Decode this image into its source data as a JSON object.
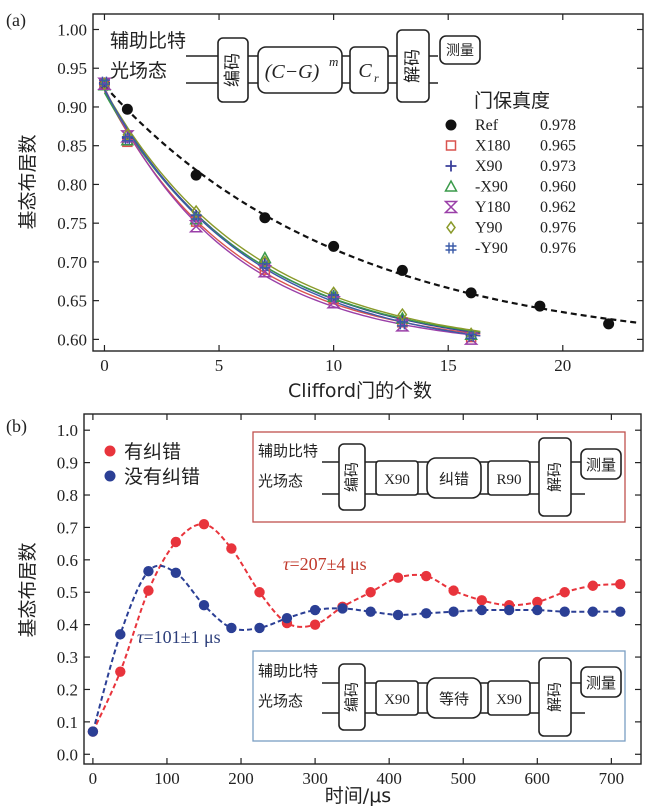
{
  "chart_data": [
    {
      "type": "line",
      "panel_label": "(a)",
      "xlabel": "Clifford门的个数",
      "ylabel": "基态布居数",
      "xlim": [
        -0.5,
        23.5
      ],
      "ylim": [
        0.585,
        1.02
      ],
      "xticks": [
        0,
        5,
        10,
        15,
        20
      ],
      "yticks": [
        0.6,
        0.65,
        0.7,
        0.75,
        0.8,
        0.85,
        0.9,
        0.95,
        1.0
      ],
      "ytick_labels": [
        "0.60",
        "0.65",
        "0.70",
        "0.75",
        "0.80",
        "0.85",
        "0.90",
        "0.95",
        "1.00"
      ],
      "legend_title": "门保真度",
      "circuit": {
        "input_top": "辅助比特",
        "input_bottom": "光场态",
        "encode": "编码",
        "gate_seq": "(C−G)",
        "gate_seq_sup": "m",
        "recovery": "C",
        "recovery_sub": "r",
        "decode": "解码",
        "measure": "测量"
      },
      "series": [
        {
          "name": "Ref",
          "fidelity": "0.978",
          "color": "#111111",
          "marker": "dot",
          "dashed": true,
          "x": [
            0,
            1,
            4,
            7,
            10,
            13,
            16,
            19,
            22
          ],
          "y": [
            0.93,
            0.897,
            0.812,
            0.757,
            0.72,
            0.689,
            0.66,
            0.643,
            0.62
          ]
        },
        {
          "name": "X180",
          "fidelity": "0.965",
          "color": "#d9534f",
          "marker": "square",
          "x": [
            0,
            1,
            4,
            7,
            10,
            13,
            16
          ],
          "y": [
            0.929,
            0.855,
            0.752,
            0.69,
            0.652,
            0.622,
            0.603
          ]
        },
        {
          "name": "X90",
          "fidelity": "0.973",
          "color": "#3a3f9a",
          "marker": "plus",
          "x": [
            0,
            1,
            4,
            7,
            10,
            13,
            16
          ],
          "y": [
            0.931,
            0.86,
            0.76,
            0.698,
            0.657,
            0.626,
            0.605
          ]
        },
        {
          "name": "-X90",
          "fidelity": "0.960",
          "color": "#3a9a4a",
          "marker": "triangle",
          "x": [
            0,
            1,
            4,
            7,
            10,
            13,
            16
          ],
          "y": [
            0.928,
            0.857,
            0.755,
            0.705,
            0.655,
            0.627,
            0.606
          ]
        },
        {
          "name": "Y180",
          "fidelity": "0.962",
          "color": "#9a3fa8",
          "marker": "bowtie",
          "x": [
            0,
            1,
            4,
            7,
            10,
            13,
            16
          ],
          "y": [
            0.93,
            0.862,
            0.746,
            0.688,
            0.648,
            0.618,
            0.601
          ]
        },
        {
          "name": "Y90",
          "fidelity": "0.976",
          "color": "#8a9a2a",
          "marker": "diamond",
          "x": [
            0,
            1,
            4,
            7,
            10,
            13,
            16
          ],
          "y": [
            0.93,
            0.864,
            0.765,
            0.7,
            0.66,
            0.632,
            0.607
          ]
        },
        {
          "name": "-Y90",
          "fidelity": "0.976",
          "color": "#3a5aa8",
          "marker": "hash",
          "x": [
            0,
            1,
            4,
            7,
            10,
            13,
            16
          ],
          "y": [
            0.932,
            0.859,
            0.758,
            0.695,
            0.655,
            0.62,
            0.604
          ]
        }
      ]
    },
    {
      "type": "line",
      "panel_label": "(b)",
      "xlabel": "时间/μs",
      "ylabel": "基态布居数",
      "xlim": [
        -12,
        740
      ],
      "ylim": [
        -0.03,
        1.05
      ],
      "xticks": [
        0,
        100,
        200,
        300,
        400,
        500,
        600,
        700
      ],
      "yticks": [
        0,
        0.1,
        0.2,
        0.3,
        0.4,
        0.5,
        0.6,
        0.7,
        0.8,
        0.9,
        1.0
      ],
      "ytick_labels": [
        "0.0",
        "0.1",
        "0.2",
        "0.3",
        "0.4",
        "0.5",
        "0.6",
        "0.7",
        "0.8",
        "0.9",
        "1.0"
      ],
      "annotations": [
        {
          "tau": "τ",
          "text": "=207±4 μs",
          "color": "#c0392b"
        },
        {
          "tau": "τ",
          "text": "=101±1 μs",
          "color": "#2c3e7a"
        }
      ],
      "circuit_top": {
        "input_top": "辅助比特",
        "input_bottom": "光场态",
        "encode": "编码",
        "g1": "X90",
        "g2": "纠错",
        "g3": "R90",
        "decode": "解码",
        "measure": "测量"
      },
      "circuit_bottom": {
        "input_top": "辅助比特",
        "input_bottom": "光场态",
        "encode": "编码",
        "g1": "X90",
        "g2": "等待",
        "g3": "X90",
        "decode": "解码",
        "measure": "测量"
      },
      "series": [
        {
          "name": "有纠错",
          "color": "#e8343c",
          "x": [
            0,
            37,
            75,
            112,
            150,
            187,
            225,
            262,
            300,
            337,
            375,
            412,
            450,
            487,
            525,
            562,
            600,
            637,
            675,
            712
          ],
          "y": [
            0.07,
            0.255,
            0.505,
            0.655,
            0.71,
            0.635,
            0.5,
            0.405,
            0.4,
            0.455,
            0.5,
            0.545,
            0.55,
            0.505,
            0.475,
            0.46,
            0.47,
            0.5,
            0.52,
            0.525
          ]
        },
        {
          "name": "没有纠错",
          "color": "#2b3f95",
          "x": [
            0,
            37,
            75,
            112,
            150,
            187,
            225,
            262,
            300,
            337,
            375,
            412,
            450,
            487,
            525,
            562,
            600,
            637,
            675,
            712
          ],
          "y": [
            0.07,
            0.37,
            0.565,
            0.56,
            0.46,
            0.39,
            0.39,
            0.42,
            0.445,
            0.45,
            0.44,
            0.43,
            0.435,
            0.44,
            0.445,
            0.445,
            0.445,
            0.44,
            0.44,
            0.44
          ]
        }
      ]
    }
  ]
}
